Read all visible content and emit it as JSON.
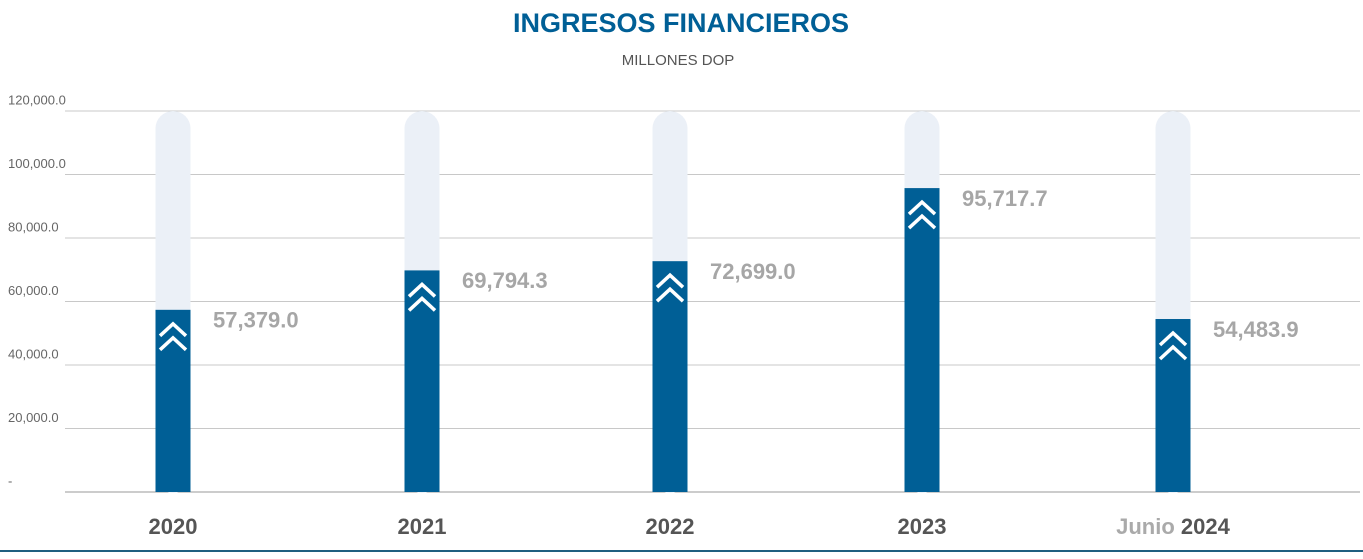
{
  "chart_data": {
    "type": "bar",
    "title": "INGRESOS FINANCIEROS",
    "subtitle": "MILLONES DOP",
    "categories": [
      "2020",
      "2021",
      "2022",
      "2023",
      "Junio 2024"
    ],
    "values": [
      57379.0,
      69794.3,
      72699.0,
      95717.7,
      54483.9
    ],
    "value_labels": [
      "57,379.0",
      "69,794.3",
      "72,699.0",
      "95,717.7",
      "54,483.9"
    ],
    "color": "#005f96",
    "track_color": "#ebf0f7",
    "ylim": [
      0,
      120000
    ],
    "yticks": [
      {
        "value": 0,
        "label": "-"
      },
      {
        "value": 20000,
        "label": "20,000.0"
      },
      {
        "value": 40000,
        "label": "40,000.0"
      },
      {
        "value": 60000,
        "label": "60,000.0"
      },
      {
        "value": 80000,
        "label": "80,000.0"
      },
      {
        "value": 100000,
        "label": "100,000.0"
      },
      {
        "value": 120000,
        "label": "120,000.0"
      }
    ],
    "grid": true
  }
}
